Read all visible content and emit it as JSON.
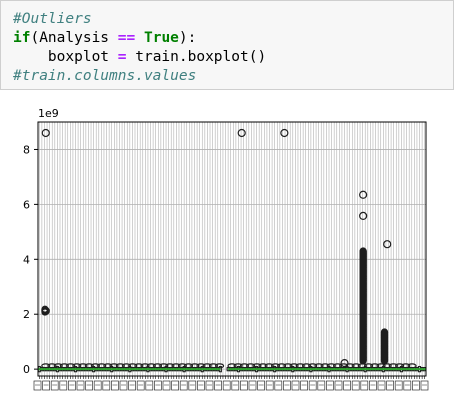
{
  "code_cell": {
    "lines": [
      {
        "tokens": [
          {
            "t": "#Outliers",
            "c": "cmt"
          }
        ]
      },
      {
        "tokens": [
          {
            "t": "if",
            "c": "kw"
          },
          {
            "t": "(Analysis ",
            "c": ""
          },
          {
            "t": "==",
            "c": "op"
          },
          {
            "t": " ",
            "c": ""
          },
          {
            "t": "True",
            "c": "kw"
          },
          {
            "t": "):",
            "c": ""
          }
        ]
      },
      {
        "tokens": [
          {
            "t": "    boxplot ",
            "c": ""
          },
          {
            "t": "=",
            "c": "op"
          },
          {
            "t": " train.boxplot()",
            "c": ""
          }
        ]
      },
      {
        "tokens": [
          {
            "t": "#train.columns.values",
            "c": "cmt"
          }
        ]
      }
    ]
  },
  "chart_data": {
    "type": "box",
    "scale_label": "1e9",
    "yticks": [
      0,
      2,
      4,
      6,
      8
    ],
    "ylim": [
      -0.25,
      9.0
    ],
    "grid": true,
    "outliers": [
      {
        "x": 0.02,
        "y": 8.6
      },
      {
        "x": 0.02,
        "y": 2.12
      },
      {
        "x": 0.525,
        "y": 8.6
      },
      {
        "x": 0.635,
        "y": 8.6
      },
      {
        "x": 0.79,
        "y": 0.22
      },
      {
        "x": 0.838,
        "y": 6.35
      },
      {
        "x": 0.838,
        "y": 5.58
      },
      {
        "x": 0.9,
        "y": 4.55
      }
    ],
    "dense_columns": [
      {
        "x": 0.838,
        "low": 0.3,
        "high": 4.3
      },
      {
        "x": 0.893,
        "low": 0.3,
        "high": 1.35
      },
      {
        "x": 0.018,
        "low": 2.08,
        "high": 2.18
      }
    ],
    "colors": {
      "box": "#1f1f1f",
      "median": "#2ca02c",
      "grid": "#b0b0b0"
    }
  }
}
